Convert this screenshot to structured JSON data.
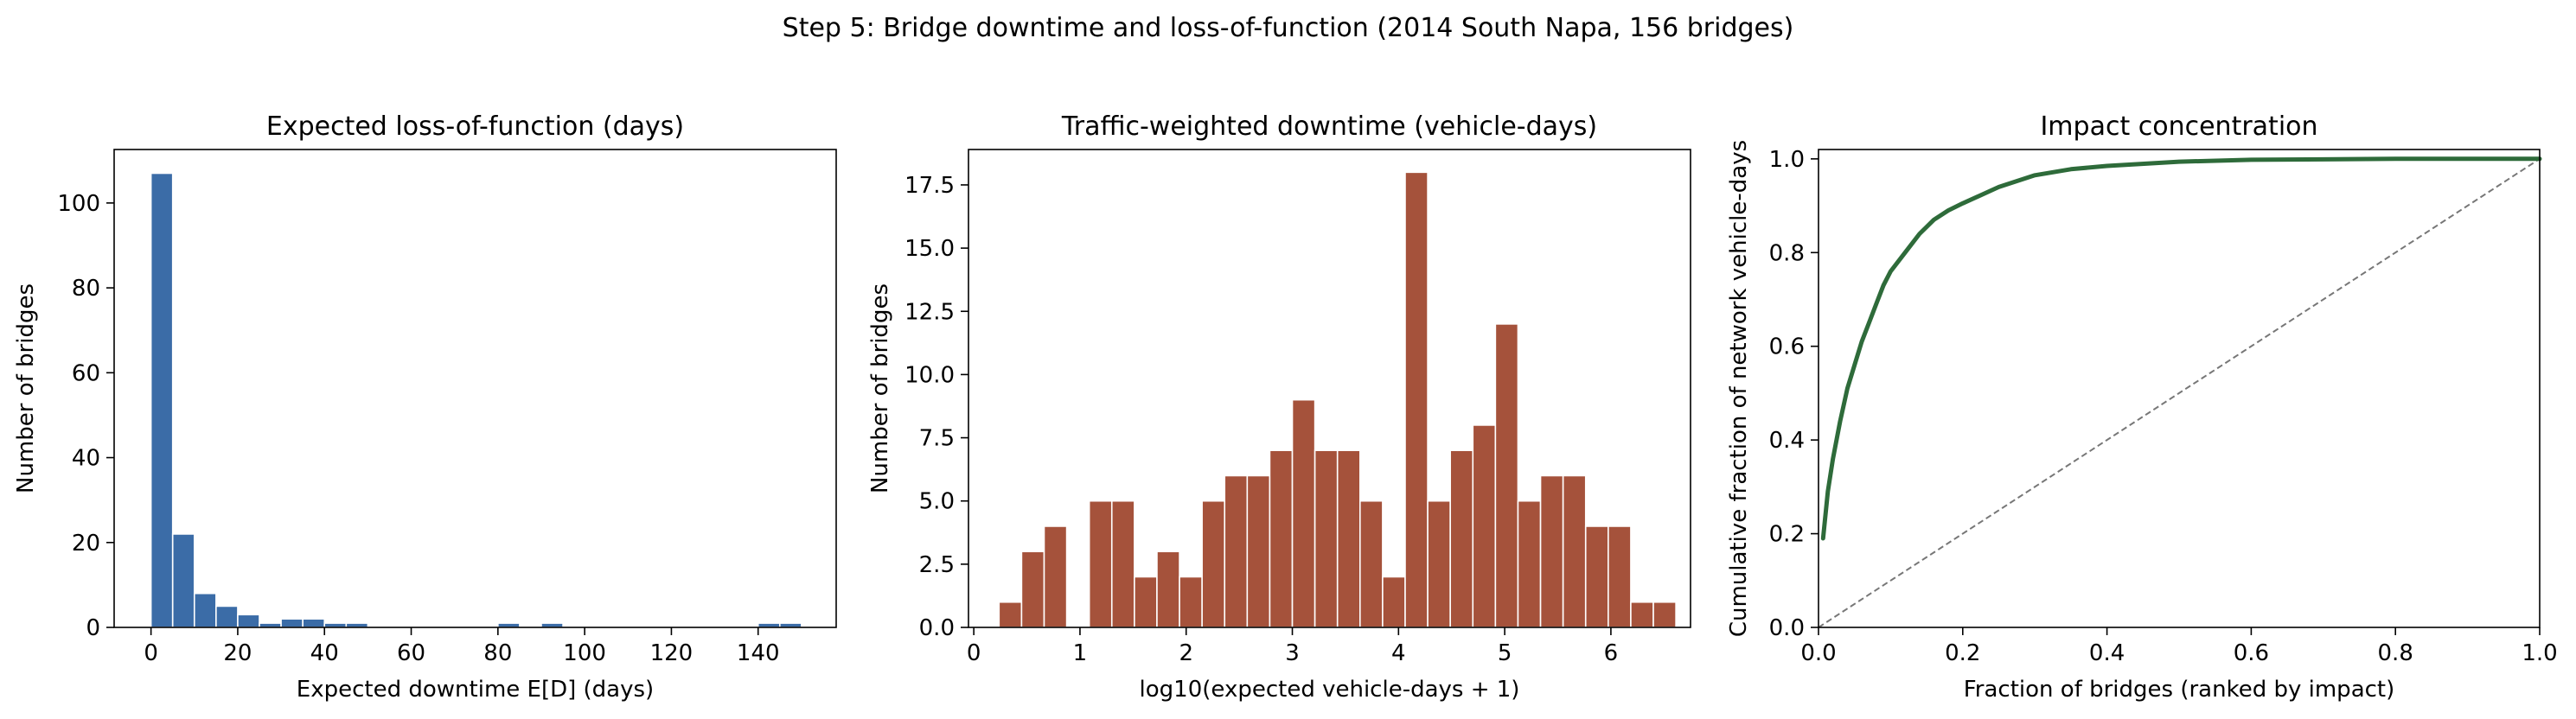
{
  "suptitle": "Step 5: Bridge downtime and loss-of-function (2014 South Napa, 156 bridges)",
  "colors": {
    "bar_blue": "#3b6ca7",
    "bar_red": "#a5523b",
    "line_green": "#2e6b3a",
    "diagonal": "#777777",
    "axes": "#000000"
  },
  "chart_data": [
    {
      "type": "bar",
      "title": "Expected loss-of-function (days)",
      "xlabel": "Expected downtime E[D] (days)",
      "ylabel": "Number of bridges",
      "xlim": [
        -8.5,
        158
      ],
      "ylim": [
        0,
        112.6
      ],
      "xticks": [
        0,
        20,
        40,
        60,
        80,
        100,
        120,
        140
      ],
      "xtick_labels": [
        "0",
        "20",
        "40",
        "60",
        "80",
        "100",
        "120",
        "140"
      ],
      "yticks": [
        0,
        20,
        40,
        60,
        80,
        100
      ],
      "ytick_labels": [
        "0",
        "20",
        "40",
        "60",
        "80",
        "100"
      ],
      "bin_width": 5,
      "bin_start": 0,
      "values": [
        107,
        22,
        8,
        5,
        3,
        1,
        2,
        2,
        1,
        1,
        0,
        0,
        0,
        0,
        0,
        0,
        1,
        0,
        1,
        0,
        0,
        0,
        0,
        0,
        0,
        0,
        0,
        0,
        1,
        1
      ],
      "grid": false
    },
    {
      "type": "bar",
      "title": "Traffic-weighted downtime (vehicle-days)",
      "xlabel": "log10(expected vehicle-days + 1)",
      "ylabel": "Number of bridges",
      "xlim": [
        -0.05,
        6.75
      ],
      "ylim": [
        0,
        18.9
      ],
      "xticks": [
        0,
        1,
        2,
        3,
        4,
        5,
        6
      ],
      "xtick_labels": [
        "0",
        "1",
        "2",
        "3",
        "4",
        "5",
        "6"
      ],
      "yticks": [
        0,
        2.5,
        5,
        7.5,
        10,
        12.5,
        15,
        17.5
      ],
      "ytick_labels": [
        "0.0",
        "2.5",
        "5.0",
        "7.5",
        "10.0",
        "12.5",
        "15.0",
        "17.5"
      ],
      "bin_width": 0.2125,
      "bin_start": 0.2375,
      "values": [
        1,
        3,
        4,
        0,
        5,
        5,
        2,
        3,
        2,
        5,
        6,
        6,
        7,
        9,
        7,
        7,
        5,
        2,
        18,
        5,
        7,
        8,
        12,
        5,
        6,
        6,
        4,
        4,
        1,
        1
      ],
      "grid": false
    },
    {
      "type": "line",
      "title": "Impact concentration",
      "xlabel": "Fraction of bridges (ranked by impact)",
      "ylabel": "Cumulative fraction of network vehicle-days",
      "xlim": [
        0,
        1
      ],
      "ylim": [
        0,
        1.02
      ],
      "xticks": [
        0,
        0.2,
        0.4,
        0.6,
        0.8,
        1.0
      ],
      "xtick_labels": [
        "0.0",
        "0.2",
        "0.4",
        "0.6",
        "0.8",
        "1.0"
      ],
      "yticks": [
        0,
        0.2,
        0.4,
        0.6,
        0.8,
        1.0
      ],
      "ytick_labels": [
        "0.0",
        "0.2",
        "0.4",
        "0.6",
        "0.8",
        "1.0"
      ],
      "series": [
        {
          "x": [
            0.0064,
            0.013,
            0.02,
            0.03,
            0.04,
            0.05,
            0.06,
            0.07,
            0.08,
            0.09,
            0.1,
            0.12,
            0.14,
            0.16,
            0.18,
            0.2,
            0.25,
            0.3,
            0.35,
            0.4,
            0.5,
            0.6,
            0.7,
            0.8,
            0.9,
            1.0
          ],
          "y": [
            0.19,
            0.29,
            0.36,
            0.44,
            0.51,
            0.56,
            0.61,
            0.65,
            0.69,
            0.73,
            0.76,
            0.8,
            0.84,
            0.87,
            0.89,
            0.905,
            0.94,
            0.965,
            0.978,
            0.985,
            0.994,
            0.998,
            0.999,
            1.0,
            1.0,
            1.0
          ]
        },
        {
          "x": [
            0,
            1
          ],
          "y": [
            0,
            1
          ],
          "style": "dashed"
        }
      ],
      "grid": false
    }
  ]
}
